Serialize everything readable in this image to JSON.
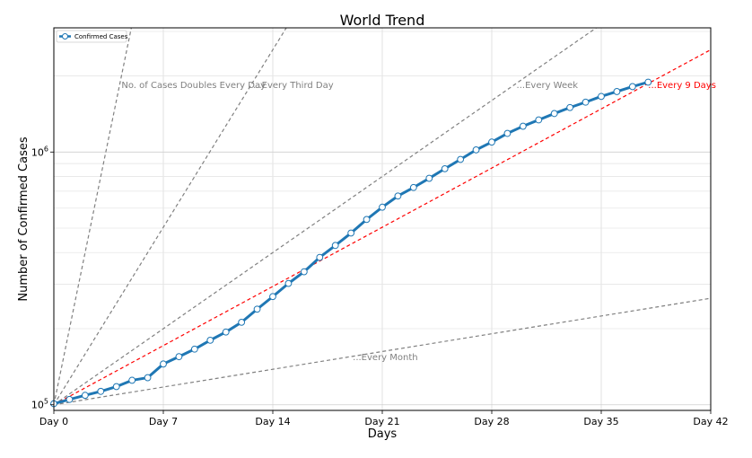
{
  "chart_data": {
    "type": "line",
    "title": "World Trend",
    "xlabel": "Days",
    "ylabel": "Number of Confirmed Cases",
    "x_scale": "linear",
    "y_scale": "log",
    "xlim": [
      0,
      42
    ],
    "ylim": [
      95000,
      3100000
    ],
    "x_ticks": [
      0,
      7,
      14,
      21,
      28,
      35,
      42
    ],
    "x_tick_labels": [
      "Day 0",
      "Day 7",
      "Day 14",
      "Day 21",
      "Day 28",
      "Day 35",
      "Day 42"
    ],
    "y_ticks": [
      {
        "value": 100000,
        "base": "10",
        "exp": "5"
      },
      {
        "value": 1000000,
        "base": "10",
        "exp": "6"
      }
    ],
    "grid": true,
    "legend": {
      "placement": "top-left",
      "entries": [
        "Confirmed Cases"
      ]
    },
    "series": [
      {
        "name": "Confirmed Cases",
        "color": "#1f77b4",
        "x": [
          0,
          1,
          2,
          3,
          4,
          5,
          6,
          7,
          8,
          9,
          10,
          11,
          12,
          13,
          14,
          15,
          16,
          17,
          18,
          19,
          20,
          21,
          22,
          23,
          24,
          25,
          26,
          27,
          28,
          29,
          30,
          31,
          32,
          33,
          34,
          35,
          36,
          37,
          38
        ],
        "y": [
          101000,
          105000,
          109000,
          113000,
          118000,
          125000,
          128000,
          145000,
          155000,
          166000,
          180000,
          194000,
          212000,
          239000,
          268000,
          302000,
          336000,
          383000,
          427000,
          478000,
          541000,
          605000,
          670000,
          724000,
          787000,
          859000,
          935000,
          1020000,
          1095000,
          1185000,
          1265000,
          1340000,
          1420000,
          1500000,
          1575000,
          1660000,
          1735000,
          1815000,
          1890000
        ]
      }
    ],
    "reference_lines": [
      {
        "label": "No. of Cases Doubles Every Day",
        "doubling_days": 1,
        "color": "#808080"
      },
      {
        "label": "...Every Third Day",
        "doubling_days": 3,
        "color": "#808080"
      },
      {
        "label": "...Every Week",
        "doubling_days": 7,
        "color": "#808080"
      },
      {
        "label": "...Every 9 Days",
        "doubling_days": 9,
        "color": "#ff0000"
      },
      {
        "label": "...Every Month",
        "doubling_days": 30,
        "color": "#808080"
      }
    ],
    "reference_start": 100000
  }
}
